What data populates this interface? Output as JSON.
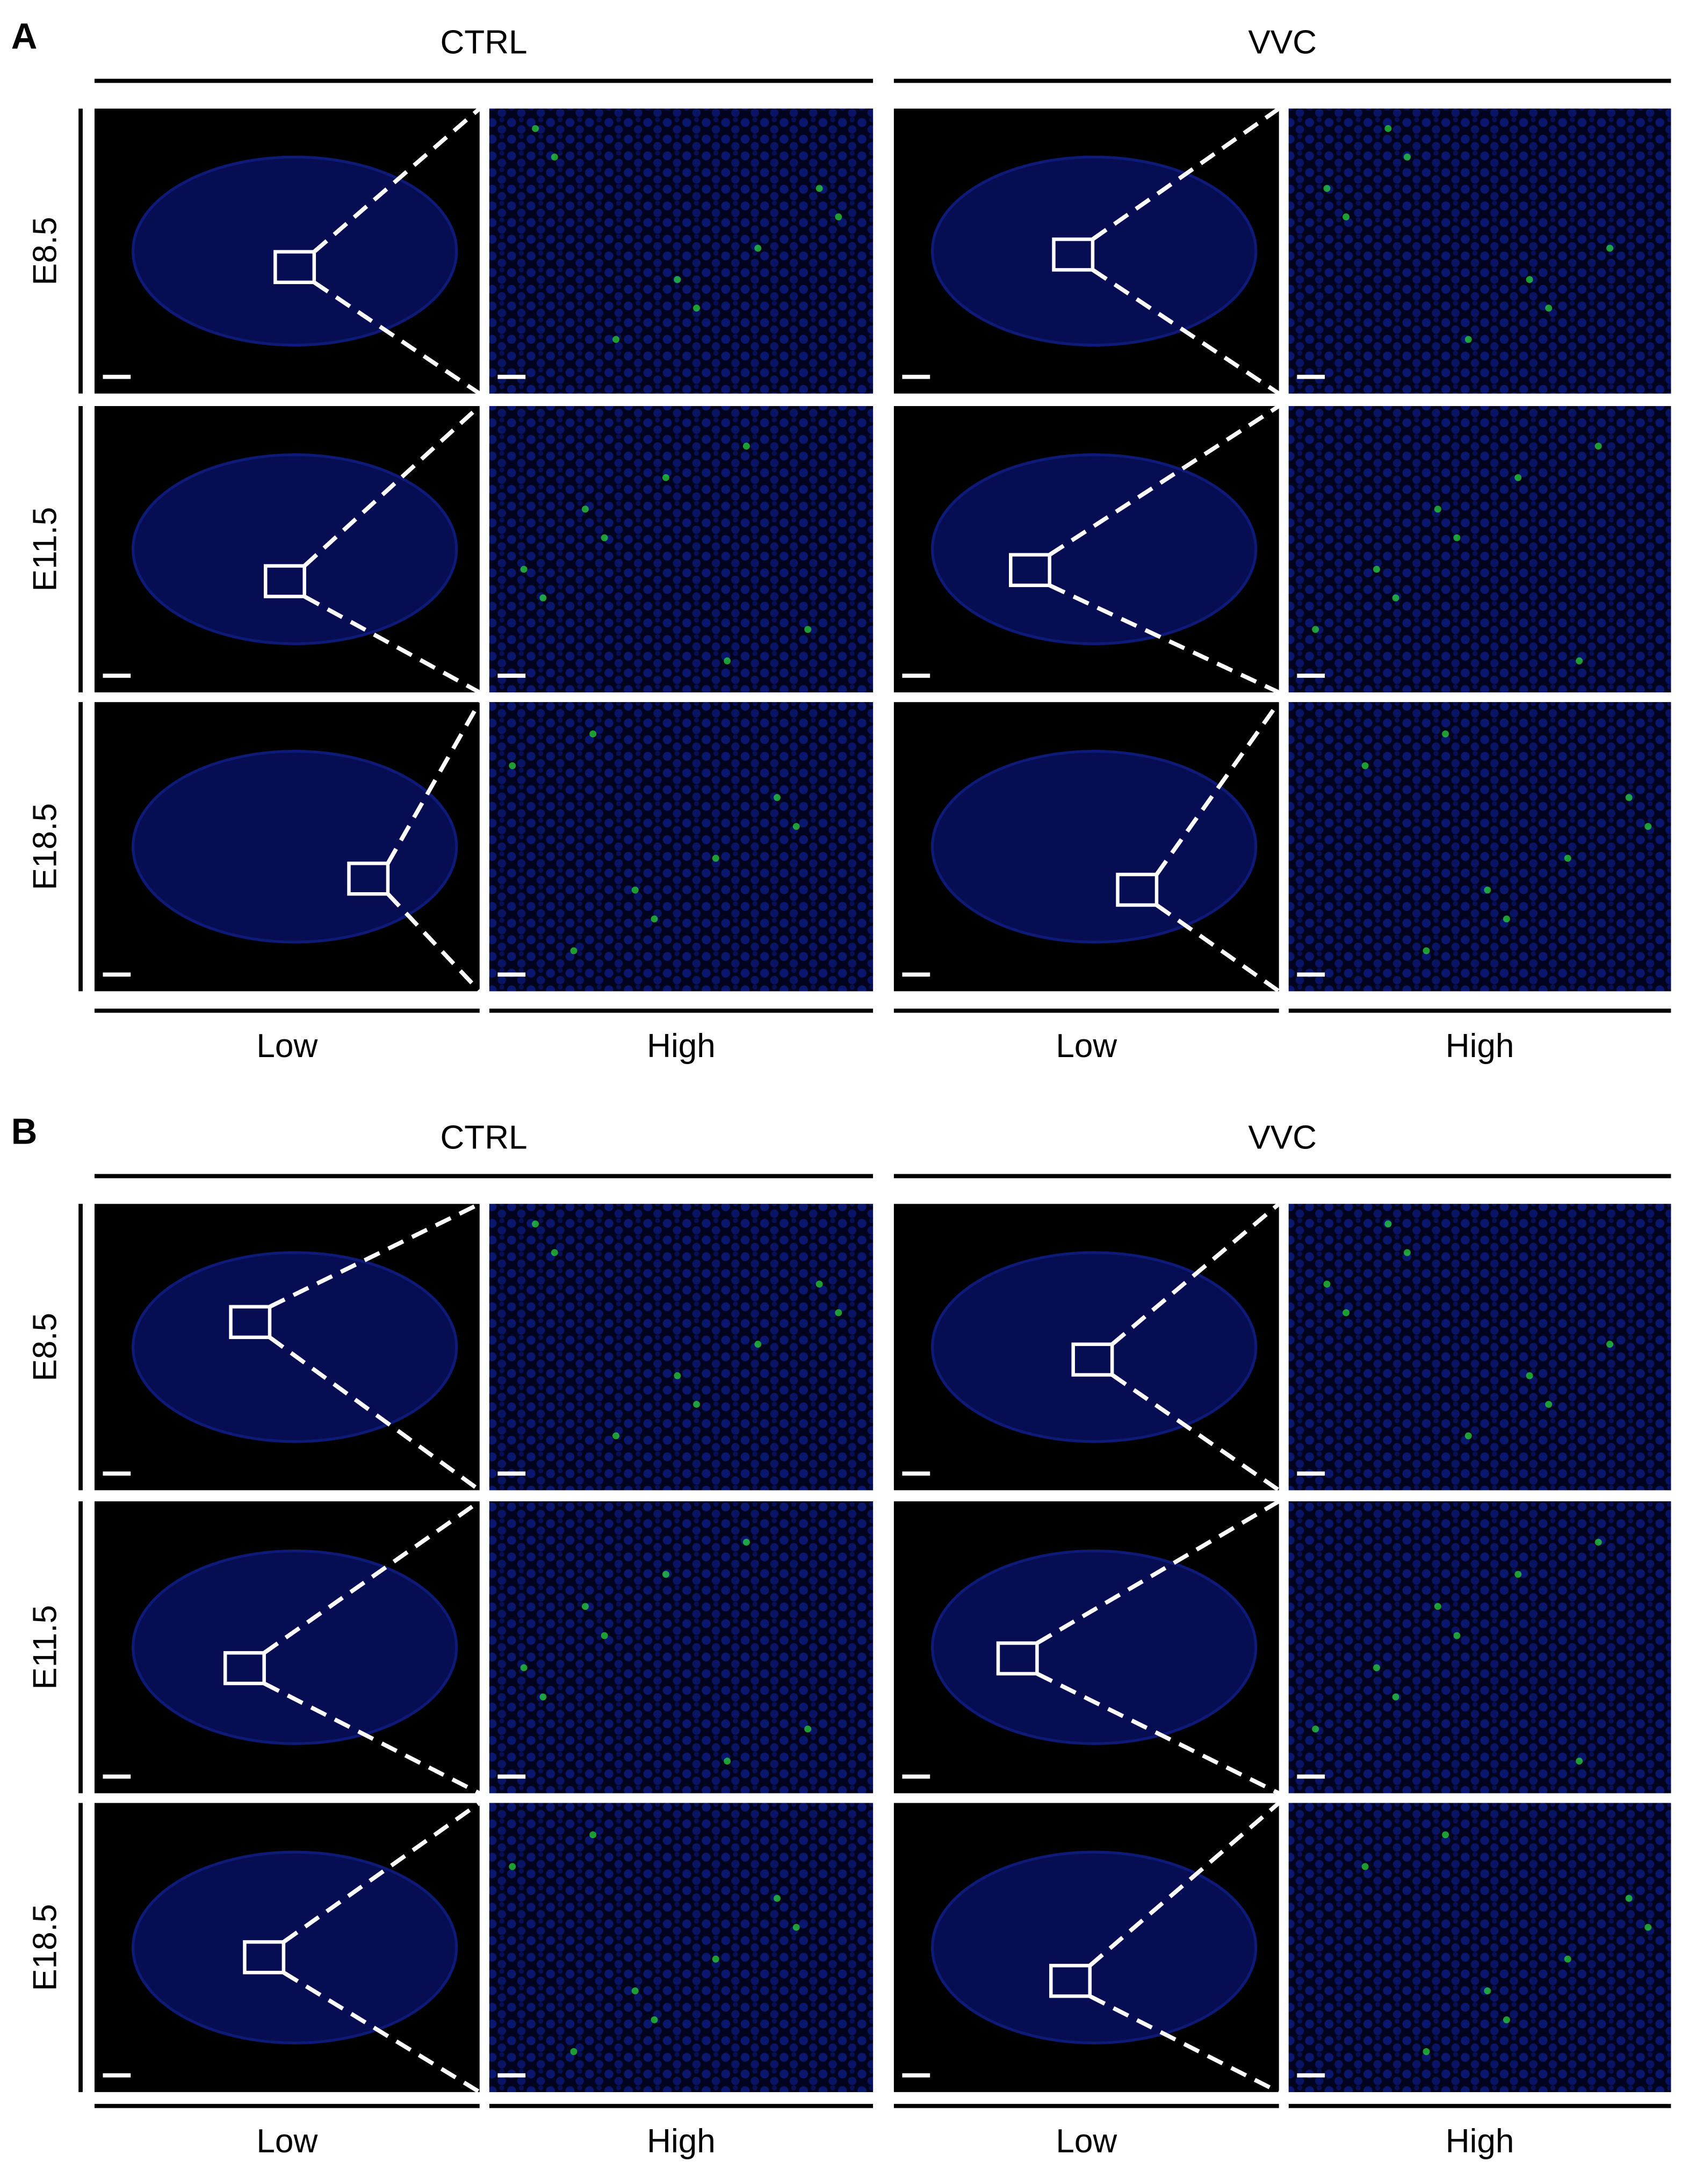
{
  "figure": {
    "panels": [
      {
        "label": "A",
        "groups": [
          "CTRL",
          "VVC"
        ],
        "rows": [
          "E8.5",
          "E11.5",
          "E18.5"
        ],
        "columns": [
          "Low",
          "High",
          "Low",
          "High"
        ]
      },
      {
        "label": "B",
        "groups": [
          "CTRL",
          "VVC"
        ],
        "rows": [
          "E8.5",
          "E11.5",
          "E18.5"
        ],
        "columns": [
          "Low",
          "High",
          "Low",
          "High"
        ]
      }
    ]
  }
}
